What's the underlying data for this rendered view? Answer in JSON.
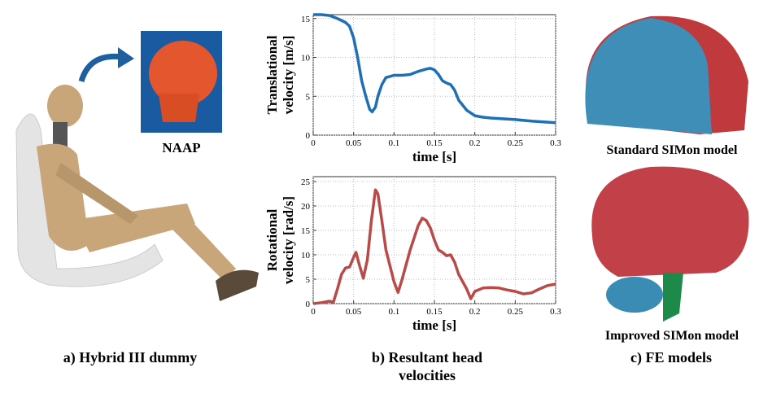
{
  "chart_data": [
    {
      "type": "line",
      "ylabel": [
        "Translational",
        "velocity [m/s]"
      ],
      "xlabel": "time [s]",
      "x": [
        0,
        0.01,
        0.02,
        0.03,
        0.04,
        0.045,
        0.05,
        0.055,
        0.06,
        0.065,
        0.07,
        0.073,
        0.077,
        0.08,
        0.085,
        0.09,
        0.1,
        0.11,
        0.12,
        0.13,
        0.14,
        0.145,
        0.15,
        0.155,
        0.16,
        0.165,
        0.17,
        0.175,
        0.18,
        0.19,
        0.2,
        0.21,
        0.22,
        0.25,
        0.27,
        0.3
      ],
      "series": [
        {
          "color": "#1f6fb4",
          "values": [
            15.5,
            15.5,
            15.4,
            15,
            14.5,
            14,
            12.5,
            10,
            7,
            5,
            3.3,
            3,
            3.6,
            5,
            6.5,
            7.4,
            7.7,
            7.7,
            7.8,
            8.2,
            8.5,
            8.6,
            8.4,
            7.8,
            7,
            6.7,
            6.5,
            5.8,
            4.5,
            3.2,
            2.5,
            2.3,
            2.2,
            2,
            1.8,
            1.6
          ]
        }
      ],
      "xlim": [
        0,
        0.3
      ],
      "xticks": [
        0,
        0.05,
        0.1,
        0.15,
        0.2,
        0.25,
        0.3
      ],
      "ylim": [
        0,
        15.5
      ],
      "yticks": [
        0,
        5,
        10,
        15
      ],
      "grid": true
    },
    {
      "type": "line",
      "ylabel": [
        "Rotational",
        "velocity [rad/s]"
      ],
      "xlabel": "time [s]",
      "x": [
        0,
        0.01,
        0.02,
        0.025,
        0.03,
        0.035,
        0.04,
        0.045,
        0.05,
        0.053,
        0.057,
        0.062,
        0.067,
        0.072,
        0.077,
        0.08,
        0.085,
        0.09,
        0.1,
        0.105,
        0.11,
        0.12,
        0.13,
        0.135,
        0.14,
        0.145,
        0.15,
        0.155,
        0.16,
        0.165,
        0.17,
        0.175,
        0.18,
        0.19,
        0.195,
        0.2,
        0.21,
        0.22,
        0.23,
        0.24,
        0.25,
        0.26,
        0.27,
        0.28,
        0.29,
        0.3
      ],
      "series": [
        {
          "color": "#b84a4a",
          "values": [
            0,
            0.2,
            0.5,
            0.3,
            3,
            6,
            7.3,
            7.5,
            9.5,
            10.5,
            8,
            5.2,
            9,
            17,
            23.3,
            22.5,
            17,
            11,
            4.5,
            2.3,
            5,
            11,
            16,
            17.5,
            17,
            15.5,
            13,
            11,
            10.5,
            9.8,
            10,
            8.5,
            6,
            3,
            1,
            2.5,
            3.2,
            3.3,
            3.2,
            2.8,
            2.5,
            2,
            2.2,
            3,
            3.7,
            4
          ]
        }
      ],
      "xlim": [
        0,
        0.3
      ],
      "xticks": [
        0,
        0.05,
        0.1,
        0.15,
        0.2,
        0.25,
        0.3
      ],
      "ylim": [
        0,
        26
      ],
      "yticks": [
        0,
        5,
        10,
        15,
        20,
        25
      ],
      "grid": true
    }
  ],
  "labels": {
    "naap": "NAAP",
    "standard": "Standard SIMon model",
    "improved": "Improved SIMon model"
  },
  "captions": {
    "a": "a) Hybrid III dummy",
    "b": "b) Resultant head velocities",
    "c": "c) FE models"
  }
}
